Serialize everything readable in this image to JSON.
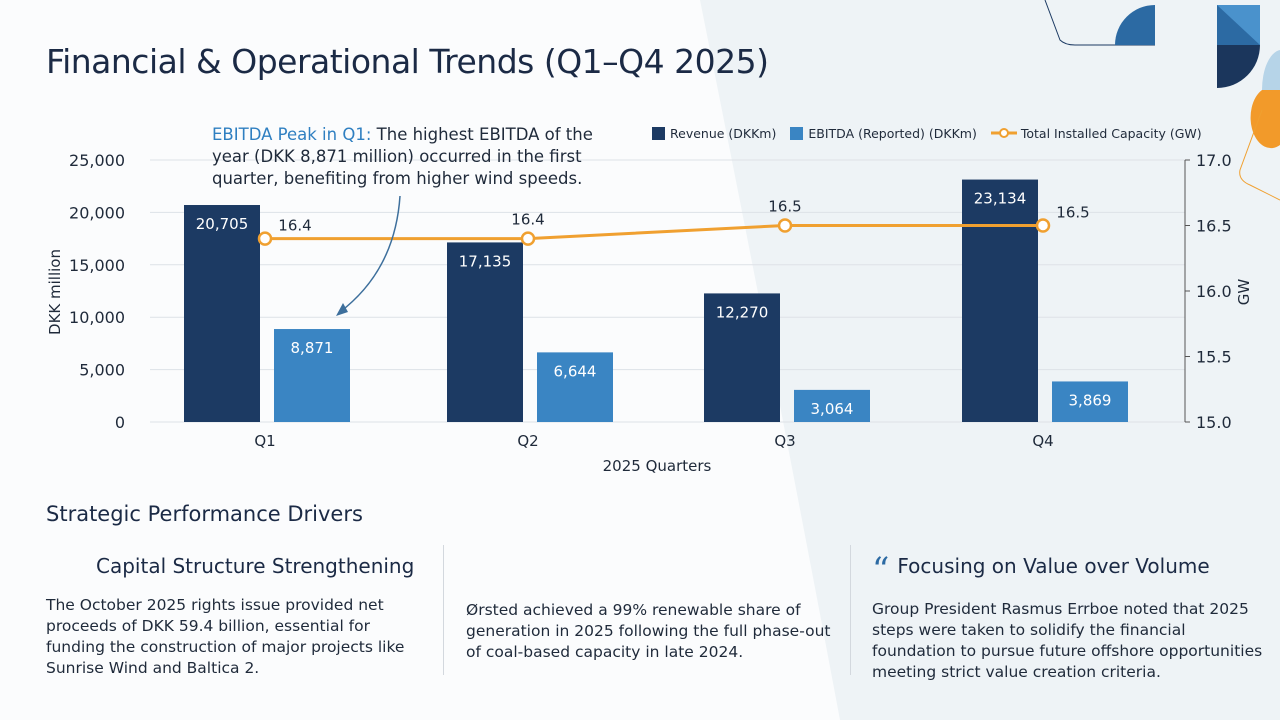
{
  "title": "Financial & Operational Trends (Q1–Q4 2025)",
  "annotation": {
    "highlight": "EBITDA Peak in Q1:",
    "text": " The highest EBITDA of the year (DKK 8,871 million) occurred in the first quarter, benefiting from higher wind speeds."
  },
  "chart_data": {
    "type": "bar",
    "categories": [
      "Q1",
      "Q2",
      "Q3",
      "Q4"
    ],
    "xlabel": "2025 Quarters",
    "ylabel": "DKK million",
    "y2label": "GW",
    "ylim": [
      0,
      25000
    ],
    "y2lim": [
      15.0,
      17.0
    ],
    "yticks": [
      "0",
      "5,000",
      "10,000",
      "15,000",
      "20,000",
      "25,000"
    ],
    "y2ticks": [
      "15.0",
      "15.5",
      "16.0",
      "16.5",
      "17.0"
    ],
    "legend_position": "top-right",
    "grid": true,
    "series": [
      {
        "name": "Revenue (DKKm)",
        "type": "bar",
        "color": "#1c3a63",
        "values": [
          20705,
          17135,
          12270,
          23134
        ],
        "labels": [
          "20,705",
          "17,135",
          "12,270",
          "23,134"
        ]
      },
      {
        "name": "EBITDA (Reported) (DKKm)",
        "type": "bar",
        "color": "#3a85c3",
        "values": [
          8871,
          6644,
          3064,
          3869
        ],
        "labels": [
          "8,871",
          "6,644",
          "3,064",
          "3,869"
        ]
      },
      {
        "name": "Total Installed Capacity (GW)",
        "type": "line",
        "axis": "right",
        "color": "#f0a030",
        "values": [
          16.4,
          16.4,
          16.5,
          16.5
        ],
        "labels": [
          "16.4",
          "16.4",
          "16.5",
          "16.5"
        ]
      }
    ]
  },
  "section": {
    "title": "Strategic Performance Drivers",
    "columns": [
      {
        "heading": "Capital Structure Strengthening",
        "text": "The October 2025 rights issue provided net proceeds of DKK 59.4 billion, essential for funding the construction of major projects like Sunrise Wind and Baltica 2."
      },
      {
        "heading": "",
        "text": "Ørsted achieved a 99% renewable share of generation in 2025 following the full phase-out of coal-based capacity in late 2024."
      },
      {
        "heading": "Focusing on Value over Volume",
        "icon": "quote-icon",
        "text": "Group President Rasmus Errboe noted that 2025 steps were taken to solidify the financial foundation to pursue future offshore opportunities meeting strict value creation criteria."
      }
    ]
  }
}
